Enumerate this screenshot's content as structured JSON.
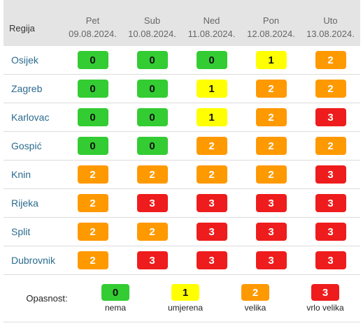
{
  "header": {
    "region_label": "Regija",
    "days": [
      {
        "name": "Pet",
        "date": "09.08.2024."
      },
      {
        "name": "Sub",
        "date": "10.08.2024."
      },
      {
        "name": "Ned",
        "date": "11.08.2024."
      },
      {
        "name": "Pon",
        "date": "12.08.2024."
      },
      {
        "name": "Uto",
        "date": "13.08.2024."
      }
    ]
  },
  "rows": [
    {
      "region": "Osijek",
      "values": [
        "0",
        "0",
        "0",
        "1",
        "2"
      ]
    },
    {
      "region": "Zagreb",
      "values": [
        "0",
        "0",
        "1",
        "2",
        "2"
      ]
    },
    {
      "region": "Karlovac",
      "values": [
        "0",
        "0",
        "1",
        "2",
        "3"
      ]
    },
    {
      "region": "Gospić",
      "values": [
        "0",
        "0",
        "2",
        "2",
        "2"
      ]
    },
    {
      "region": "Knin",
      "values": [
        "2",
        "2",
        "2",
        "2",
        "3"
      ]
    },
    {
      "region": "Rijeka",
      "values": [
        "2",
        "3",
        "3",
        "3",
        "3"
      ]
    },
    {
      "region": "Split",
      "values": [
        "2",
        "2",
        "3",
        "3",
        "3"
      ]
    },
    {
      "region": "Dubrovnik",
      "values": [
        "2",
        "3",
        "3",
        "3",
        "3"
      ]
    }
  ],
  "legend": {
    "label": "Opasnost:",
    "items": [
      {
        "value": "0",
        "text": "nema"
      },
      {
        "value": "1",
        "text": "umjerena"
      },
      {
        "value": "2",
        "text": "velika"
      },
      {
        "value": "3",
        "text": "vrlo velika"
      }
    ]
  },
  "colors": {
    "level0": "#33cc33",
    "level1": "#ffff00",
    "level2": "#ff9900",
    "level3": "#ee1c1c",
    "header_bg": "#e4e4e4",
    "region_link": "#2a6b8f"
  }
}
